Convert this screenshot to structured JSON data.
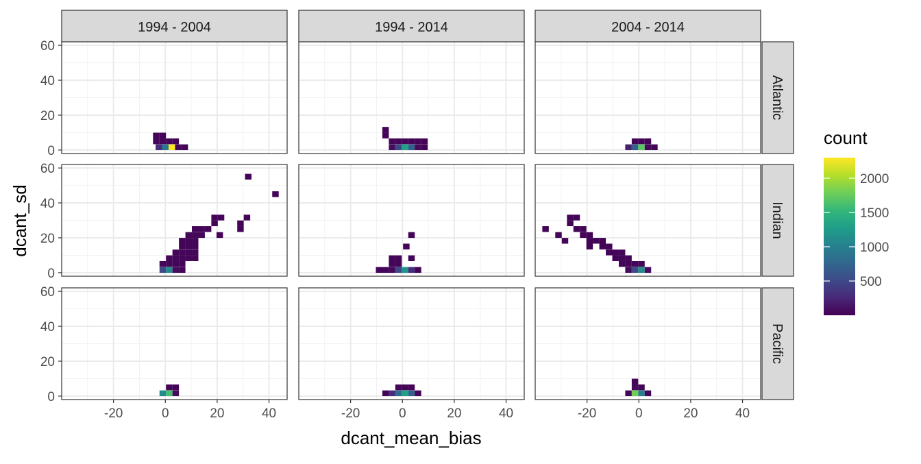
{
  "chart_data": {
    "type": "heatmap",
    "subtype": "faceted-2d-histogram",
    "xlabel": "dcant_mean_bias",
    "ylabel": "dcant_sd",
    "xlim": [
      -40,
      47
    ],
    "ylim": [
      -2,
      62
    ],
    "x_ticks": [
      -20,
      0,
      20,
      40
    ],
    "y_ticks": [
      0,
      20,
      40,
      60
    ],
    "col_facets": [
      "1994 - 2004",
      "1994 - 2014",
      "2004 - 2014"
    ],
    "row_facets": [
      "Atlantic",
      "Indian",
      "Pacific"
    ],
    "bin_width_x": 2.5,
    "bin_height_y": 3.3,
    "grid": true,
    "legend": {
      "title": "count",
      "position": "right",
      "range": [
        0,
        2300
      ],
      "ticks": [
        500,
        1000,
        1500,
        2000
      ],
      "palette": [
        "#440154",
        "#482878",
        "#3e4a89",
        "#31688e",
        "#26828e",
        "#1f9e89",
        "#35b779",
        "#6ece58",
        "#b5de2b",
        "#fde725"
      ]
    },
    "panels": [
      {
        "col": "1994 - 2004",
        "row": "Atlantic",
        "cells": [
          {
            "x": -2.5,
            "y": 1.6,
            "count": 300
          },
          {
            "x": 0,
            "y": 1.6,
            "count": 900
          },
          {
            "x": 2.5,
            "y": 1.6,
            "count": 2300
          },
          {
            "x": 5,
            "y": 1.6,
            "count": 40
          },
          {
            "x": 7.5,
            "y": 1.6,
            "count": 20
          },
          {
            "x": -3.5,
            "y": 5,
            "count": 30
          },
          {
            "x": -1,
            "y": 5,
            "count": 30
          },
          {
            "x": 1.5,
            "y": 5,
            "count": 25
          },
          {
            "x": 4,
            "y": 5,
            "count": 20
          },
          {
            "x": -3.5,
            "y": 8.3,
            "count": 20
          },
          {
            "x": -1,
            "y": 8.3,
            "count": 20
          }
        ]
      },
      {
        "col": "1994 - 2014",
        "row": "Atlantic",
        "cells": [
          {
            "x": -4,
            "y": 1.6,
            "count": 80
          },
          {
            "x": -1.5,
            "y": 1.6,
            "count": 500
          },
          {
            "x": 1,
            "y": 1.6,
            "count": 1300
          },
          {
            "x": 3.5,
            "y": 1.6,
            "count": 700
          },
          {
            "x": 6,
            "y": 1.6,
            "count": 60
          },
          {
            "x": 8.5,
            "y": 1.6,
            "count": 20
          },
          {
            "x": -4,
            "y": 5,
            "count": 30
          },
          {
            "x": -1.5,
            "y": 5,
            "count": 30
          },
          {
            "x": 1,
            "y": 5,
            "count": 30
          },
          {
            "x": 3.5,
            "y": 5,
            "count": 25
          },
          {
            "x": 6,
            "y": 5,
            "count": 25
          },
          {
            "x": 8.5,
            "y": 5,
            "count": 20
          },
          {
            "x": -6.5,
            "y": 8.3,
            "count": 20
          },
          {
            "x": -6.5,
            "y": 11.6,
            "count": 20
          }
        ]
      },
      {
        "col": "2004 - 2014",
        "row": "Atlantic",
        "cells": [
          {
            "x": -4,
            "y": 1.6,
            "count": 200
          },
          {
            "x": -1.5,
            "y": 1.6,
            "count": 700
          },
          {
            "x": 1,
            "y": 1.6,
            "count": 1700
          },
          {
            "x": 3.5,
            "y": 1.6,
            "count": 60
          },
          {
            "x": 6,
            "y": 1.6,
            "count": 20
          },
          {
            "x": -1.5,
            "y": 5,
            "count": 30
          },
          {
            "x": 1,
            "y": 5,
            "count": 25
          },
          {
            "x": 3.5,
            "y": 5,
            "count": 20
          }
        ]
      },
      {
        "col": "1994 - 2004",
        "row": "Indian",
        "cells": [
          {
            "x": -1,
            "y": 1.6,
            "count": 500
          },
          {
            "x": 1.5,
            "y": 1.6,
            "count": 1100
          },
          {
            "x": 4,
            "y": 1.6,
            "count": 80
          },
          {
            "x": 6.5,
            "y": 1.6,
            "count": 20
          },
          {
            "x": -1,
            "y": 5,
            "count": 40
          },
          {
            "x": 1.5,
            "y": 5,
            "count": 40
          },
          {
            "x": 4,
            "y": 5,
            "count": 30
          },
          {
            "x": 6.5,
            "y": 5,
            "count": 30
          },
          {
            "x": 1.5,
            "y": 8.3,
            "count": 30
          },
          {
            "x": 4,
            "y": 8.3,
            "count": 30
          },
          {
            "x": 6.5,
            "y": 8.3,
            "count": 30
          },
          {
            "x": 9,
            "y": 8.3,
            "count": 30
          },
          {
            "x": 11.5,
            "y": 8.3,
            "count": 20
          },
          {
            "x": 4,
            "y": 11.6,
            "count": 30
          },
          {
            "x": 6.5,
            "y": 11.6,
            "count": 30
          },
          {
            "x": 9,
            "y": 11.6,
            "count": 30
          },
          {
            "x": 11.5,
            "y": 11.6,
            "count": 30
          },
          {
            "x": 6.5,
            "y": 15,
            "count": 30
          },
          {
            "x": 9,
            "y": 15,
            "count": 30
          },
          {
            "x": 11.5,
            "y": 15,
            "count": 30
          },
          {
            "x": 6.5,
            "y": 18.3,
            "count": 20
          },
          {
            "x": 9,
            "y": 18.3,
            "count": 30
          },
          {
            "x": 11.5,
            "y": 18.3,
            "count": 30
          },
          {
            "x": 9,
            "y": 21.6,
            "count": 25
          },
          {
            "x": 11.5,
            "y": 21.6,
            "count": 30
          },
          {
            "x": 14,
            "y": 21.6,
            "count": 25
          },
          {
            "x": 21,
            "y": 21.6,
            "count": 20
          },
          {
            "x": 11.5,
            "y": 25,
            "count": 25
          },
          {
            "x": 14,
            "y": 25,
            "count": 25
          },
          {
            "x": 16.5,
            "y": 25,
            "count": 20
          },
          {
            "x": 19,
            "y": 28.3,
            "count": 20
          },
          {
            "x": 19,
            "y": 31.6,
            "count": 20
          },
          {
            "x": 21.5,
            "y": 31.6,
            "count": 20
          },
          {
            "x": 29,
            "y": 25,
            "count": 20
          },
          {
            "x": 29,
            "y": 28.3,
            "count": 20
          },
          {
            "x": 31.5,
            "y": 31.6,
            "count": 20
          },
          {
            "x": 32,
            "y": 55,
            "count": 20
          },
          {
            "x": 42.5,
            "y": 45,
            "count": 20
          }
        ]
      },
      {
        "col": "1994 - 2014",
        "row": "Indian",
        "cells": [
          {
            "x": -9,
            "y": 1.6,
            "count": 20
          },
          {
            "x": -6.5,
            "y": 1.6,
            "count": 30
          },
          {
            "x": -4,
            "y": 1.6,
            "count": 60
          },
          {
            "x": -1.5,
            "y": 1.6,
            "count": 500
          },
          {
            "x": 1,
            "y": 1.6,
            "count": 1200
          },
          {
            "x": 3.5,
            "y": 1.6,
            "count": 300
          },
          {
            "x": 6,
            "y": 1.6,
            "count": 20
          },
          {
            "x": -4,
            "y": 5,
            "count": 30
          },
          {
            "x": -1.5,
            "y": 5,
            "count": 25
          },
          {
            "x": 3.5,
            "y": 8.3,
            "count": 20
          },
          {
            "x": -4,
            "y": 8.3,
            "count": 20
          },
          {
            "x": -1.5,
            "y": 8.3,
            "count": 20
          },
          {
            "x": 1.5,
            "y": 15,
            "count": 20
          },
          {
            "x": 3.5,
            "y": 21.6,
            "count": 20
          }
        ]
      },
      {
        "col": "2004 - 2014",
        "row": "Indian",
        "cells": [
          {
            "x": -4,
            "y": 1.6,
            "count": 60
          },
          {
            "x": -1.5,
            "y": 1.6,
            "count": 500
          },
          {
            "x": 1,
            "y": 1.6,
            "count": 1100
          },
          {
            "x": 3.5,
            "y": 1.6,
            "count": 80
          },
          {
            "x": -6.5,
            "y": 5,
            "count": 30
          },
          {
            "x": -4,
            "y": 5,
            "count": 30
          },
          {
            "x": -1.5,
            "y": 5,
            "count": 30
          },
          {
            "x": 1,
            "y": 5,
            "count": 30
          },
          {
            "x": -9,
            "y": 8.3,
            "count": 25
          },
          {
            "x": -6.5,
            "y": 8.3,
            "count": 25
          },
          {
            "x": -4,
            "y": 8.3,
            "count": 25
          },
          {
            "x": -11.5,
            "y": 11.6,
            "count": 20
          },
          {
            "x": -9,
            "y": 11.6,
            "count": 25
          },
          {
            "x": -6.5,
            "y": 11.6,
            "count": 20
          },
          {
            "x": -14,
            "y": 15,
            "count": 20
          },
          {
            "x": -11.5,
            "y": 15,
            "count": 20
          },
          {
            "x": -19,
            "y": 18.3,
            "count": 20
          },
          {
            "x": -16.5,
            "y": 18.3,
            "count": 20
          },
          {
            "x": -14,
            "y": 18.3,
            "count": 20
          },
          {
            "x": -21.5,
            "y": 21.6,
            "count": 20
          },
          {
            "x": -19,
            "y": 21.6,
            "count": 20
          },
          {
            "x": -24,
            "y": 25,
            "count": 20
          },
          {
            "x": -21.5,
            "y": 25,
            "count": 20
          },
          {
            "x": -26.5,
            "y": 28.3,
            "count": 20
          },
          {
            "x": -24,
            "y": 31.6,
            "count": 20
          },
          {
            "x": -26.5,
            "y": 31.6,
            "count": 20
          },
          {
            "x": -36,
            "y": 25,
            "count": 20
          },
          {
            "x": -31,
            "y": 21.6,
            "count": 20
          },
          {
            "x": -28.5,
            "y": 18.3,
            "count": 20
          },
          {
            "x": -19,
            "y": 15,
            "count": 20
          }
        ]
      },
      {
        "col": "1994 - 2004",
        "row": "Pacific",
        "cells": [
          {
            "x": -1,
            "y": 1.6,
            "count": 1100
          },
          {
            "x": 1.5,
            "y": 1.6,
            "count": 1600
          },
          {
            "x": 4,
            "y": 1.6,
            "count": 60
          },
          {
            "x": 1.5,
            "y": 5,
            "count": 30
          },
          {
            "x": 4,
            "y": 5,
            "count": 20
          }
        ]
      },
      {
        "col": "1994 - 2014",
        "row": "Pacific",
        "cells": [
          {
            "x": -6.5,
            "y": 1.6,
            "count": 20
          },
          {
            "x": -4,
            "y": 1.6,
            "count": 300
          },
          {
            "x": -1.5,
            "y": 1.6,
            "count": 800
          },
          {
            "x": 1,
            "y": 1.6,
            "count": 1300
          },
          {
            "x": 3.5,
            "y": 1.6,
            "count": 700
          },
          {
            "x": 6,
            "y": 1.6,
            "count": 20
          },
          {
            "x": -1.5,
            "y": 5,
            "count": 30
          },
          {
            "x": 1,
            "y": 5,
            "count": 30
          },
          {
            "x": 3.5,
            "y": 5,
            "count": 20
          }
        ]
      },
      {
        "col": "2004 - 2014",
        "row": "Pacific",
        "cells": [
          {
            "x": -4,
            "y": 1.6,
            "count": 30
          },
          {
            "x": -1.5,
            "y": 1.6,
            "count": 1800
          },
          {
            "x": 1,
            "y": 1.6,
            "count": 1000
          },
          {
            "x": 3.5,
            "y": 1.6,
            "count": 30
          },
          {
            "x": -1.5,
            "y": 5,
            "count": 40
          },
          {
            "x": 1,
            "y": 5,
            "count": 20
          },
          {
            "x": -1.5,
            "y": 8.3,
            "count": 20
          }
        ]
      }
    ]
  }
}
